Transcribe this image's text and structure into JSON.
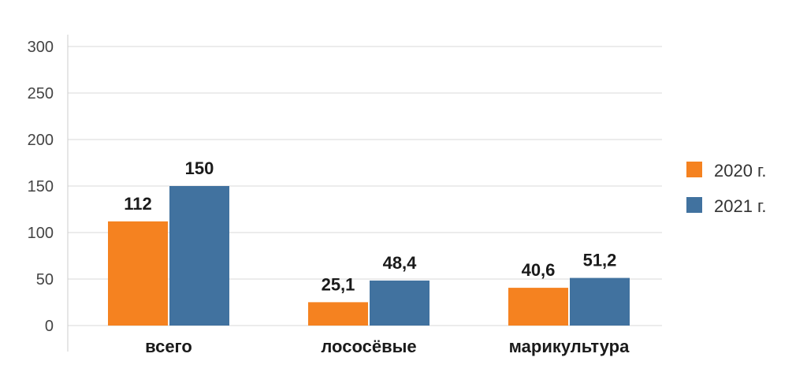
{
  "chart_data": {
    "type": "bar",
    "categories": [
      "всего",
      "лососёвые",
      "марикультура"
    ],
    "series": [
      {
        "name": "2020 г.",
        "values": [
          112,
          25.1,
          40.6
        ],
        "labels": [
          "112",
          "25,1",
          "40,6"
        ],
        "color": "#F58220"
      },
      {
        "name": "2021 г.",
        "values": [
          150,
          48.4,
          51.2
        ],
        "labels": [
          "150",
          "48,4",
          "51,2"
        ],
        "color": "#41729F"
      }
    ],
    "yticks": [
      "0",
      "50",
      "100",
      "150",
      "200",
      "250",
      "300"
    ],
    "ylim": [
      0,
      300
    ],
    "grid": true,
    "legend": "right",
    "title": "",
    "xlabel": "",
    "ylabel": ""
  }
}
